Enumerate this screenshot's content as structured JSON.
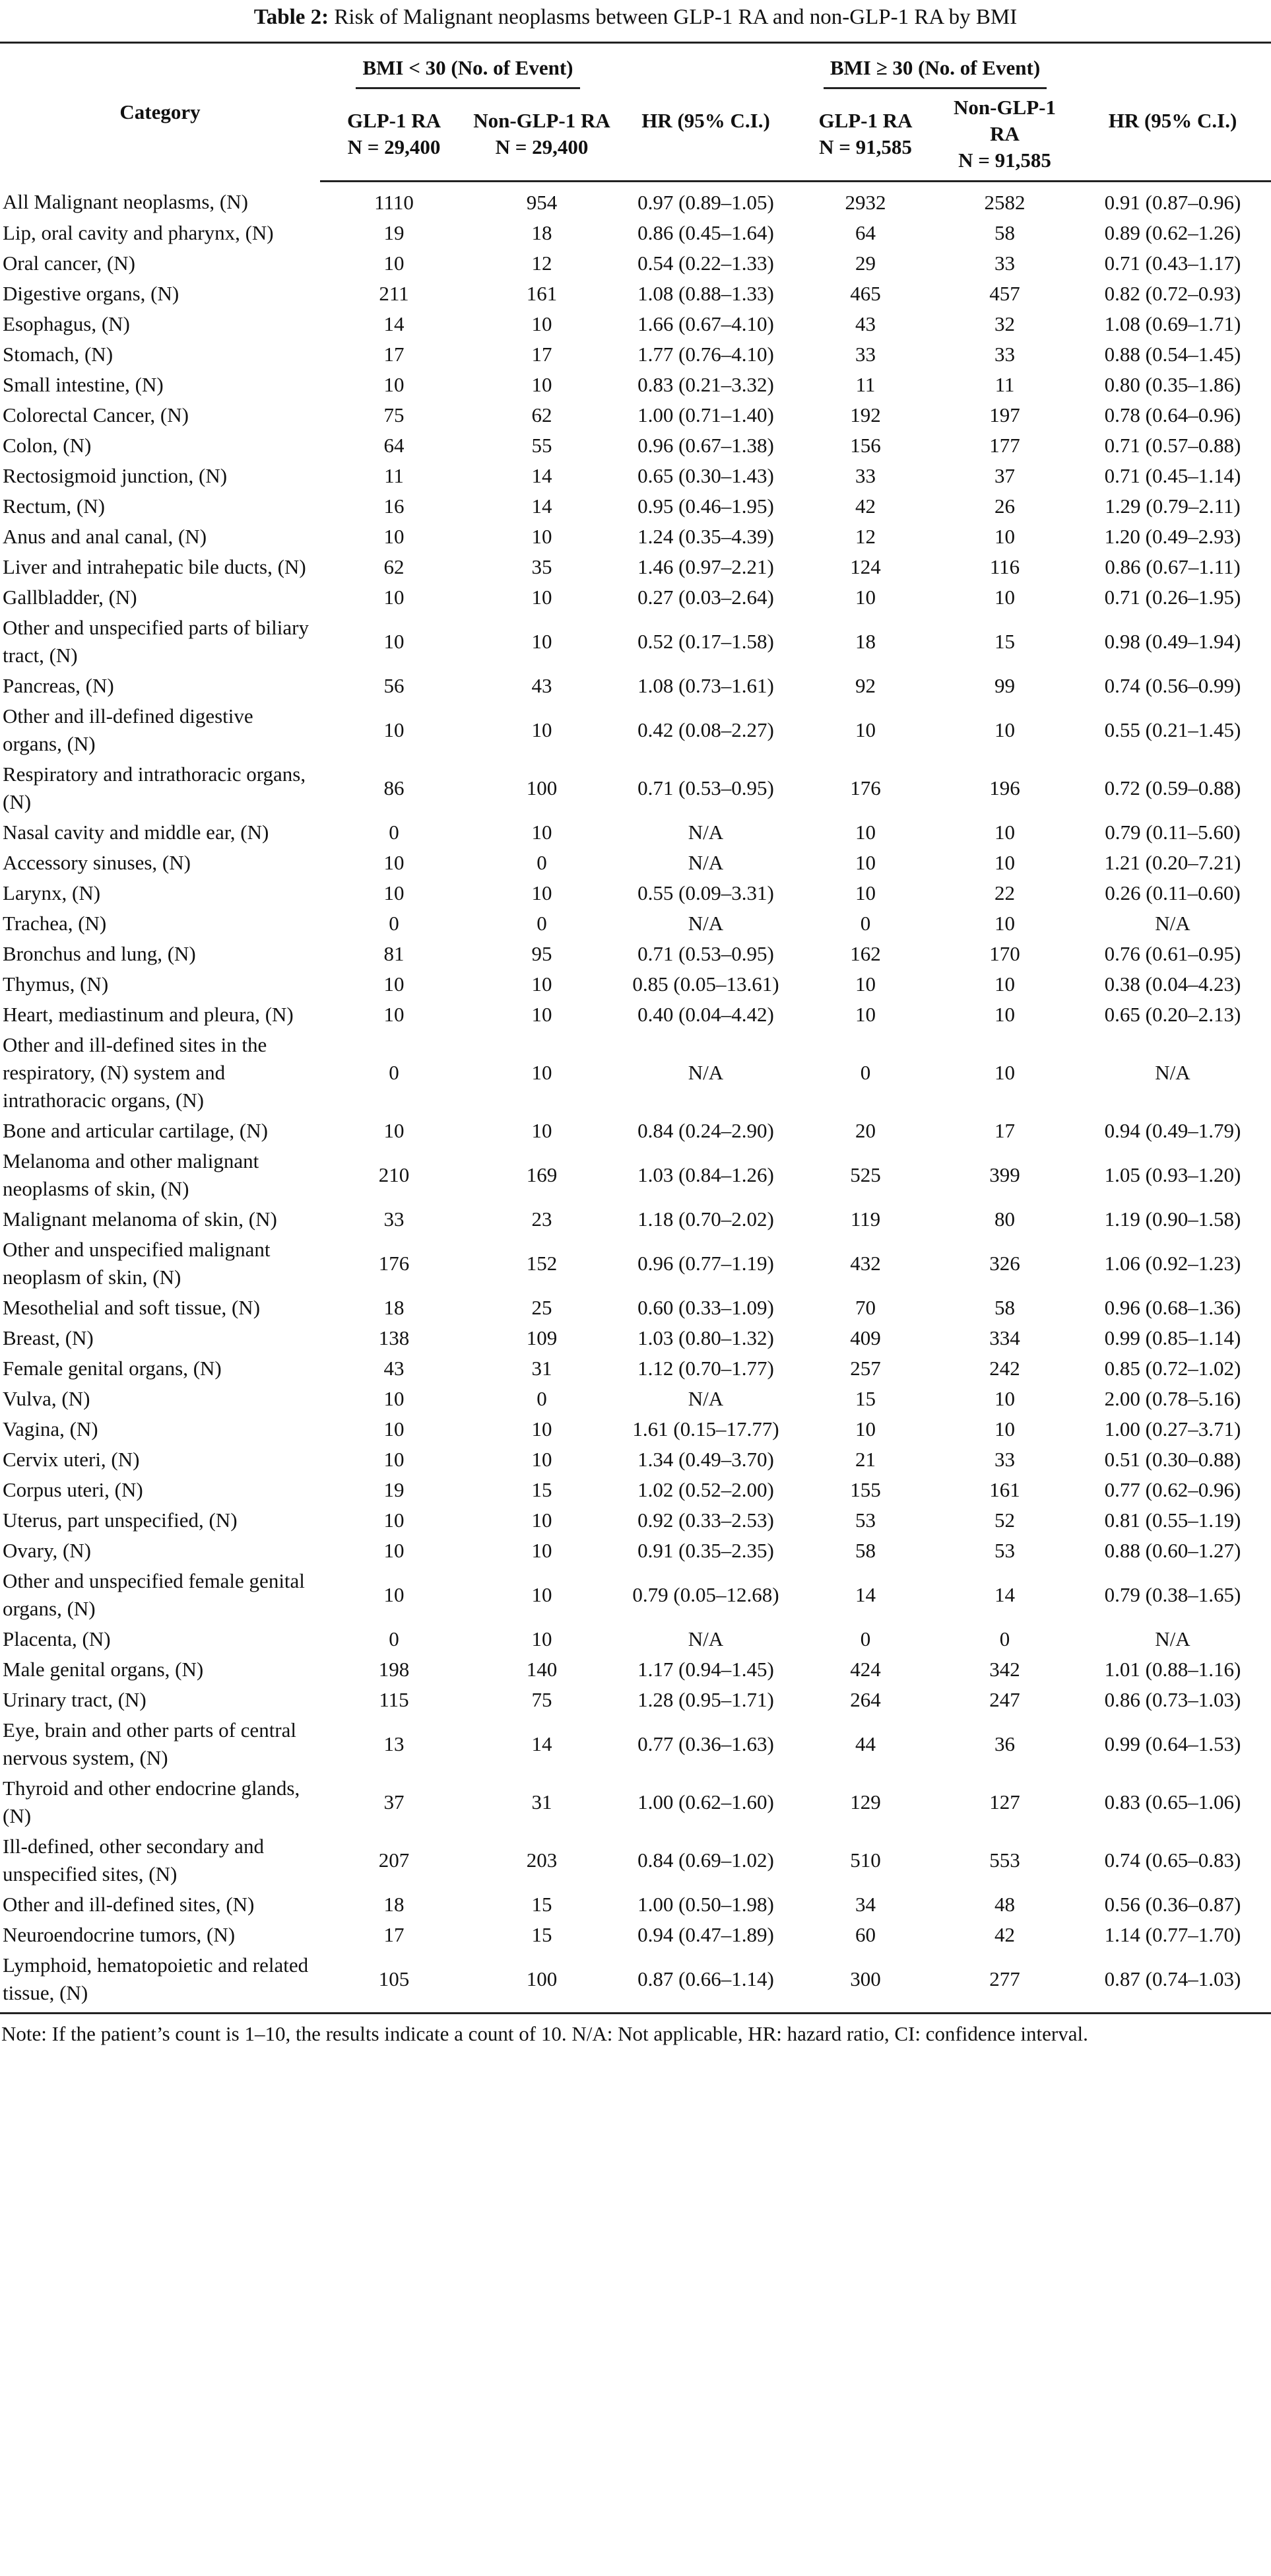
{
  "title": {
    "label": "Table 2:",
    "text": "Risk of Malignant neoplasms between GLP-1 RA and non-GLP-1 RA by BMI"
  },
  "header": {
    "category": "Category",
    "group1": "BMI < 30 (No. of Event)",
    "group2": "BMI ≥ 30 (No. of Event)",
    "cols": [
      {
        "name": "GLP-1 RA",
        "n": "N = 29,400"
      },
      {
        "name": "Non-GLP-1 RA",
        "n": "N = 29,400"
      },
      {
        "name": "HR (95% C.I.)",
        "n": ""
      },
      {
        "name": "GLP-1 RA",
        "n": "N = 91,585"
      },
      {
        "name": "Non-GLP-1 RA",
        "n": "N = 91,585"
      },
      {
        "name": "HR (95% C.I.)",
        "n": ""
      }
    ]
  },
  "rows": [
    [
      "All Malignant neoplasms, (N)",
      "1110",
      "954",
      "0.97 (0.89–1.05)",
      "2932",
      "2582",
      "0.91 (0.87–0.96)"
    ],
    [
      "Lip, oral cavity and pharynx, (N)",
      "19",
      "18",
      "0.86 (0.45–1.64)",
      "64",
      "58",
      "0.89 (0.62–1.26)"
    ],
    [
      "Oral cancer, (N)",
      "10",
      "12",
      "0.54 (0.22–1.33)",
      "29",
      "33",
      "0.71 (0.43–1.17)"
    ],
    [
      "Digestive organs, (N)",
      "211",
      "161",
      "1.08 (0.88–1.33)",
      "465",
      "457",
      "0.82 (0.72–0.93)"
    ],
    [
      "Esophagus, (N)",
      "14",
      "10",
      "1.66 (0.67–4.10)",
      "43",
      "32",
      "1.08 (0.69–1.71)"
    ],
    [
      "Stomach, (N)",
      "17",
      "17",
      "1.77 (0.76–4.10)",
      "33",
      "33",
      "0.88 (0.54–1.45)"
    ],
    [
      "Small intestine, (N)",
      "10",
      "10",
      "0.83 (0.21–3.32)",
      "11",
      "11",
      "0.80 (0.35–1.86)"
    ],
    [
      "Colorectal Cancer, (N)",
      "75",
      "62",
      "1.00 (0.71–1.40)",
      "192",
      "197",
      "0.78 (0.64–0.96)"
    ],
    [
      "Colon, (N)",
      "64",
      "55",
      "0.96 (0.67–1.38)",
      "156",
      "177",
      "0.71 (0.57–0.88)"
    ],
    [
      "Rectosigmoid junction, (N)",
      "11",
      "14",
      "0.65 (0.30–1.43)",
      "33",
      "37",
      "0.71 (0.45–1.14)"
    ],
    [
      "Rectum, (N)",
      "16",
      "14",
      "0.95 (0.46–1.95)",
      "42",
      "26",
      "1.29 (0.79–2.11)"
    ],
    [
      "Anus and anal canal, (N)",
      "10",
      "10",
      "1.24 (0.35–4.39)",
      "12",
      "10",
      "1.20 (0.49–2.93)"
    ],
    [
      "Liver and intrahepatic bile ducts, (N)",
      "62",
      "35",
      "1.46 (0.97–2.21)",
      "124",
      "116",
      "0.86 (0.67–1.11)"
    ],
    [
      "Gallbladder, (N)",
      "10",
      "10",
      "0.27 (0.03–2.64)",
      "10",
      "10",
      "0.71 (0.26–1.95)"
    ],
    [
      "Other and unspecified parts of biliary tract, (N)",
      "10",
      "10",
      "0.52 (0.17–1.58)",
      "18",
      "15",
      "0.98 (0.49–1.94)"
    ],
    [
      "Pancreas, (N)",
      "56",
      "43",
      "1.08 (0.73–1.61)",
      "92",
      "99",
      "0.74 (0.56–0.99)"
    ],
    [
      "Other and ill-defined digestive organs, (N)",
      "10",
      "10",
      "0.42 (0.08–2.27)",
      "10",
      "10",
      "0.55 (0.21–1.45)"
    ],
    [
      "Respiratory and intrathoracic organs, (N)",
      "86",
      "100",
      "0.71 (0.53–0.95)",
      "176",
      "196",
      "0.72 (0.59–0.88)"
    ],
    [
      "Nasal cavity and middle ear, (N)",
      "0",
      "10",
      "N/A",
      "10",
      "10",
      "0.79 (0.11–5.60)"
    ],
    [
      "Accessory sinuses, (N)",
      "10",
      "0",
      "N/A",
      "10",
      "10",
      "1.21 (0.20–7.21)"
    ],
    [
      "Larynx, (N)",
      "10",
      "10",
      "0.55 (0.09–3.31)",
      "10",
      "22",
      "0.26 (0.11–0.60)"
    ],
    [
      "Trachea, (N)",
      "0",
      "0",
      "N/A",
      "0",
      "10",
      "N/A"
    ],
    [
      "Bronchus and lung, (N)",
      "81",
      "95",
      "0.71 (0.53–0.95)",
      "162",
      "170",
      "0.76 (0.61–0.95)"
    ],
    [
      "Thymus, (N)",
      "10",
      "10",
      "0.85 (0.05–13.61)",
      "10",
      "10",
      "0.38 (0.04–4.23)"
    ],
    [
      "Heart, mediastinum and pleura, (N)",
      "10",
      "10",
      "0.40 (0.04–4.42)",
      "10",
      "10",
      "0.65 (0.20–2.13)"
    ],
    [
      "Other and ill-defined sites in the respiratory, (N) system and intrathoracic organs, (N)",
      "0",
      "10",
      "N/A",
      "0",
      "10",
      "N/A"
    ],
    [
      "Bone and articular cartilage, (N)",
      "10",
      "10",
      "0.84 (0.24–2.90)",
      "20",
      "17",
      "0.94 (0.49–1.79)"
    ],
    [
      "Melanoma and other malignant neoplasms of skin, (N)",
      "210",
      "169",
      "1.03 (0.84–1.26)",
      "525",
      "399",
      "1.05 (0.93–1.20)"
    ],
    [
      "Malignant melanoma of skin, (N)",
      "33",
      "23",
      "1.18 (0.70–2.02)",
      "119",
      "80",
      "1.19 (0.90–1.58)"
    ],
    [
      "Other and unspecified malignant neoplasm of skin, (N)",
      "176",
      "152",
      "0.96 (0.77–1.19)",
      "432",
      "326",
      "1.06 (0.92–1.23)"
    ],
    [
      "Mesothelial and soft tissue, (N)",
      "18",
      "25",
      "0.60 (0.33–1.09)",
      "70",
      "58",
      "0.96 (0.68–1.36)"
    ],
    [
      "Breast, (N)",
      "138",
      "109",
      "1.03 (0.80–1.32)",
      "409",
      "334",
      "0.99 (0.85–1.14)"
    ],
    [
      "Female genital organs, (N)",
      "43",
      "31",
      "1.12 (0.70–1.77)",
      "257",
      "242",
      "0.85 (0.72–1.02)"
    ],
    [
      "Vulva, (N)",
      "10",
      "0",
      "N/A",
      "15",
      "10",
      "2.00 (0.78–5.16)"
    ],
    [
      "Vagina, (N)",
      "10",
      "10",
      "1.61 (0.15–17.77)",
      "10",
      "10",
      "1.00 (0.27–3.71)"
    ],
    [
      "Cervix uteri, (N)",
      "10",
      "10",
      "1.34 (0.49–3.70)",
      "21",
      "33",
      "0.51 (0.30–0.88)"
    ],
    [
      "Corpus uteri, (N)",
      "19",
      "15",
      "1.02 (0.52–2.00)",
      "155",
      "161",
      "0.77 (0.62–0.96)"
    ],
    [
      "Uterus, part unspecified, (N)",
      "10",
      "10",
      "0.92 (0.33–2.53)",
      "53",
      "52",
      "0.81 (0.55–1.19)"
    ],
    [
      "Ovary, (N)",
      "10",
      "10",
      "0.91 (0.35–2.35)",
      "58",
      "53",
      "0.88 (0.60–1.27)"
    ],
    [
      "Other and unspecified female genital organs, (N)",
      "10",
      "10",
      "0.79 (0.05–12.68)",
      "14",
      "14",
      "0.79 (0.38–1.65)"
    ],
    [
      "Placenta, (N)",
      "0",
      "10",
      "N/A",
      "0",
      "0",
      "N/A"
    ],
    [
      "Male genital organs, (N)",
      "198",
      "140",
      "1.17 (0.94–1.45)",
      "424",
      "342",
      "1.01 (0.88–1.16)"
    ],
    [
      "Urinary tract, (N)",
      "115",
      "75",
      "1.28 (0.95–1.71)",
      "264",
      "247",
      "0.86 (0.73–1.03)"
    ],
    [
      "Eye, brain and other parts of central nervous system, (N)",
      "13",
      "14",
      "0.77 (0.36–1.63)",
      "44",
      "36",
      "0.99 (0.64–1.53)"
    ],
    [
      "Thyroid and other endocrine glands, (N)",
      "37",
      "31",
      "1.00 (0.62–1.60)",
      "129",
      "127",
      "0.83 (0.65–1.06)"
    ],
    [
      "Ill-defined, other secondary and unspecified sites, (N)",
      "207",
      "203",
      "0.84 (0.69–1.02)",
      "510",
      "553",
      "0.74 (0.65–0.83)"
    ],
    [
      "Other and ill-defined sites, (N)",
      "18",
      "15",
      "1.00 (0.50–1.98)",
      "34",
      "48",
      "0.56 (0.36–0.87)"
    ],
    [
      "Neuroendocrine tumors, (N)",
      "17",
      "15",
      "0.94 (0.47–1.89)",
      "60",
      "42",
      "1.14 (0.77–1.70)"
    ],
    [
      "Lymphoid, hematopoietic and related tissue, (N)",
      "105",
      "100",
      "0.87 (0.66–1.14)",
      "300",
      "277",
      "0.87 (0.74–1.03)"
    ]
  ],
  "note": "Note: If the patient’s count is 1–10, the results indicate a count of 10. N/A: Not applicable, HR: hazard ratio, CI: confidence interval."
}
